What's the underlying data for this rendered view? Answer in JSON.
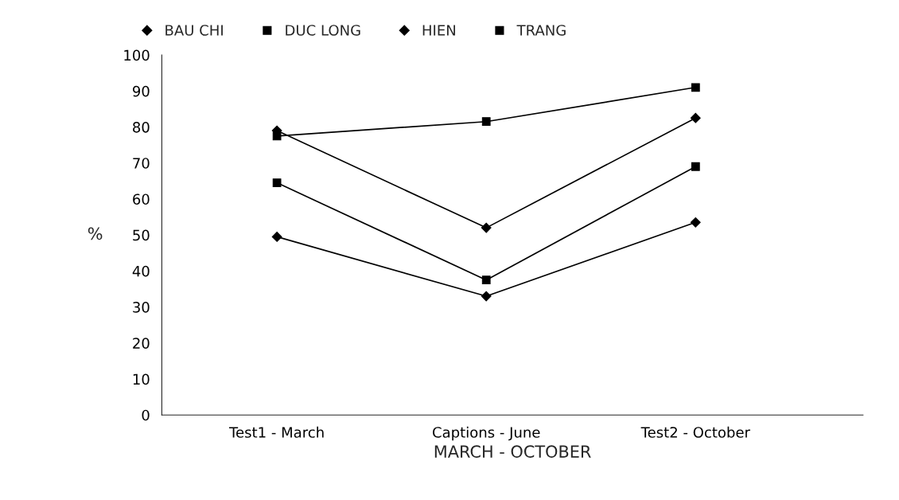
{
  "chart_data": {
    "type": "line",
    "xlabel": "MARCH - OCTOBER",
    "ylabel": "%",
    "categories": [
      "Test1 - March",
      "Captions - June",
      "Test2 - October"
    ],
    "series": [
      {
        "name": "BAU CHI",
        "color": "#000000",
        "marker": "diamond",
        "values": [
          79,
          52,
          82.5
        ]
      },
      {
        "name": "DUC LONG",
        "color": "#000000",
        "marker": "square",
        "values": [
          77.5,
          81.5,
          91
        ]
      },
      {
        "name": "HIEN",
        "color": "#000000",
        "marker": "diamond",
        "values": [
          49.5,
          33,
          53.5
        ]
      },
      {
        "name": "TRANG",
        "color": "#000000",
        "marker": "square",
        "values": [
          64.5,
          37.5,
          69
        ]
      }
    ],
    "ylim": [
      0,
      100
    ],
    "yticks": [
      0,
      10,
      20,
      30,
      40,
      50,
      60,
      70,
      80,
      90,
      100
    ],
    "grid": false,
    "legend": "top left",
    "line_style": "solid"
  }
}
